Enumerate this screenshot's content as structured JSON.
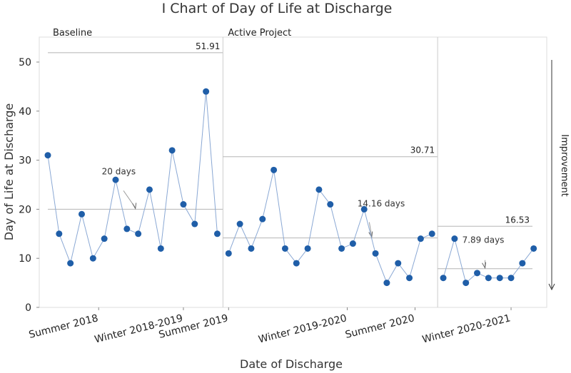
{
  "chart_data": {
    "type": "line",
    "title": "I Chart of Day of Life at Discharge",
    "xlabel": "Date of Discharge",
    "ylabel": "Day of Life at Discharge",
    "ylim": [
      0,
      55
    ],
    "yticks": [
      0,
      10,
      20,
      30,
      40,
      50
    ],
    "x_tick_labels": [
      "Summer 2018",
      "Winter 2018-2019",
      "Summer 2019",
      "Winter 2019-2020",
      "Summer 2020",
      "Winter 2020-2021"
    ],
    "x_tick_index": [
      4.5,
      12,
      16,
      26.5,
      32.5,
      41
    ],
    "values": [
      31,
      15,
      9,
      19,
      10,
      14,
      26,
      16,
      15,
      24,
      12,
      32,
      21,
      17,
      44,
      15,
      11,
      17,
      12,
      18,
      28,
      12,
      9,
      12,
      24,
      21,
      12,
      13,
      20,
      11,
      5,
      9,
      6,
      14,
      15,
      6,
      14,
      5,
      7,
      6,
      6,
      6,
      9,
      12
    ],
    "phases": [
      {
        "name": "Baseline",
        "start": 0,
        "end": 15,
        "mean": 20,
        "mean_label": "20 days",
        "ucl": 51.91,
        "ucl_label": "51.91"
      },
      {
        "name": "Active Project",
        "start": 16,
        "end": 34,
        "mean": 14.16,
        "mean_label": "14.16 days",
        "ucl": 30.71,
        "ucl_label": "30.71"
      },
      {
        "name": "",
        "start": 35,
        "end": 43,
        "mean": 7.89,
        "mean_label": "7.89 days",
        "ucl": 16.53,
        "ucl_label": "16.53"
      }
    ],
    "improvement_label": "Improvement",
    "colors": {
      "point": "#1f5ea8",
      "line": "#8aa8d4",
      "limit": "#b5b5b5",
      "frame": "#dddddd"
    }
  }
}
